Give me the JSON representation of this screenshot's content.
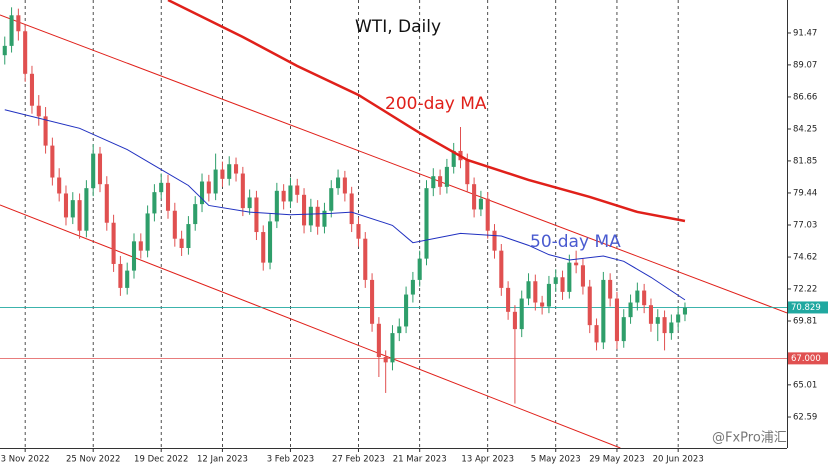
{
  "chart_data": {
    "type": "candlestick",
    "title": "WTI, Daily",
    "annotations": [
      {
        "text": "200-day MA",
        "color": "#e0201a"
      },
      {
        "text": "50-day MA",
        "color": "#4a5bd0"
      }
    ],
    "watermark": "@FxPro浦汇",
    "up_color": "#2e9e6a",
    "down_color": "#e05050",
    "xlim": [
      -0.7,
      115
    ],
    "ylim": [
      60.26,
      93.95
    ],
    "xticks": [
      {
        "value": 3,
        "label": "3 Nov 2022"
      },
      {
        "value": 13,
        "label": "25 Nov 2022"
      },
      {
        "value": 23,
        "label": "19 Dec 2022"
      },
      {
        "value": 32,
        "label": "12 Jan 2023"
      },
      {
        "value": 42,
        "label": "3 Feb 2023"
      },
      {
        "value": 52,
        "label": "27 Feb 2023"
      },
      {
        "value": 61,
        "label": "21 Mar 2023"
      },
      {
        "value": 71,
        "label": "13 Apr 2023"
      },
      {
        "value": 81,
        "label": "5 May 2023"
      },
      {
        "value": 90,
        "label": "29 May 2023"
      },
      {
        "value": 99,
        "label": "20 Jun 2023"
      }
    ],
    "yticks": [
      91.47,
      89.07,
      86.66,
      84.25,
      81.85,
      79.44,
      77.03,
      74.62,
      72.22,
      69.81,
      65.01,
      62.59
    ],
    "candles": [
      [
        89.8,
        91.2,
        89.1,
        90.5
      ],
      [
        90.5,
        93.4,
        90.0,
        92.8
      ],
      [
        92.8,
        93.3,
        90.9,
        91.6
      ],
      [
        91.6,
        92.1,
        87.8,
        88.4
      ],
      [
        88.4,
        89.0,
        85.4,
        86.0
      ],
      [
        86.0,
        86.8,
        84.5,
        85.2
      ],
      [
        85.2,
        85.9,
        82.4,
        83.0
      ],
      [
        83.0,
        83.6,
        80.0,
        80.6
      ],
      [
        80.6,
        81.3,
        78.8,
        79.4
      ],
      [
        79.4,
        80.0,
        77.0,
        77.6
      ],
      [
        77.6,
        79.5,
        77.1,
        78.9
      ],
      [
        78.9,
        79.4,
        76.0,
        76.6
      ],
      [
        76.6,
        80.4,
        76.1,
        79.8
      ],
      [
        79.8,
        83.1,
        79.2,
        82.4
      ],
      [
        82.4,
        82.9,
        79.5,
        80.1
      ],
      [
        80.1,
        80.7,
        76.6,
        77.2
      ],
      [
        77.2,
        77.8,
        73.5,
        74.1
      ],
      [
        74.1,
        74.7,
        71.7,
        72.3
      ],
      [
        72.3,
        74.2,
        71.8,
        73.6
      ],
      [
        73.6,
        76.4,
        73.0,
        75.8
      ],
      [
        75.8,
        76.4,
        74.5,
        75.1
      ],
      [
        75.1,
        78.5,
        74.6,
        77.9
      ],
      [
        77.9,
        80.1,
        77.3,
        79.5
      ],
      [
        79.5,
        80.9,
        79.0,
        80.2
      ],
      [
        80.2,
        80.8,
        77.5,
        78.1
      ],
      [
        78.1,
        78.7,
        75.4,
        76.0
      ],
      [
        76.0,
        76.6,
        74.7,
        75.3
      ],
      [
        75.3,
        77.7,
        74.8,
        77.1
      ],
      [
        77.1,
        79.2,
        76.6,
        78.6
      ],
      [
        78.6,
        80.9,
        78.0,
        80.3
      ],
      [
        80.3,
        80.8,
        78.8,
        79.4
      ],
      [
        79.4,
        82.4,
        78.9,
        81.2
      ],
      [
        81.2,
        81.8,
        79.9,
        80.5
      ],
      [
        80.5,
        82.2,
        80.0,
        81.6
      ],
      [
        81.6,
        82.1,
        80.3,
        80.9
      ],
      [
        80.9,
        81.4,
        77.7,
        78.3
      ],
      [
        78.3,
        79.7,
        77.8,
        79.1
      ],
      [
        79.1,
        79.6,
        75.9,
        76.5
      ],
      [
        76.5,
        77.0,
        73.6,
        74.2
      ],
      [
        74.2,
        77.9,
        73.7,
        77.3
      ],
      [
        77.3,
        80.2,
        76.8,
        79.6
      ],
      [
        79.6,
        80.1,
        78.2,
        78.8
      ],
      [
        78.8,
        80.6,
        78.3,
        80.0
      ],
      [
        80.0,
        80.5,
        78.7,
        79.3
      ],
      [
        79.3,
        79.8,
        76.4,
        77.0
      ],
      [
        77.0,
        79.0,
        76.5,
        78.4
      ],
      [
        78.4,
        78.9,
        76.3,
        76.9
      ],
      [
        76.9,
        78.7,
        76.4,
        78.1
      ],
      [
        78.1,
        80.4,
        77.6,
        79.8
      ],
      [
        79.8,
        81.2,
        79.3,
        80.6
      ],
      [
        80.6,
        81.1,
        78.8,
        79.4
      ],
      [
        79.4,
        79.9,
        76.5,
        77.1
      ],
      [
        77.1,
        77.6,
        75.4,
        76.0
      ],
      [
        76.0,
        76.5,
        72.3,
        72.9
      ],
      [
        72.9,
        73.4,
        69.0,
        69.6
      ],
      [
        69.6,
        70.1,
        65.6,
        67.1
      ],
      [
        67.1,
        67.6,
        64.4,
        66.7
      ],
      [
        66.7,
        69.5,
        66.1,
        68.9
      ],
      [
        68.9,
        70.0,
        68.3,
        69.4
      ],
      [
        69.4,
        72.4,
        68.9,
        71.8
      ],
      [
        71.8,
        73.5,
        71.2,
        72.9
      ],
      [
        72.9,
        75.1,
        72.4,
        74.5
      ],
      [
        74.5,
        80.4,
        74.0,
        79.8
      ],
      [
        79.8,
        81.3,
        79.2,
        80.7
      ],
      [
        80.7,
        81.2,
        79.3,
        79.9
      ],
      [
        79.9,
        82.0,
        79.4,
        81.4
      ],
      [
        81.4,
        83.2,
        80.9,
        82.6
      ],
      [
        82.6,
        84.4,
        81.3,
        81.9
      ],
      [
        81.9,
        82.4,
        79.5,
        80.1
      ],
      [
        80.1,
        80.6,
        77.6,
        78.2
      ],
      [
        78.2,
        79.6,
        77.7,
        79.0
      ],
      [
        79.0,
        79.5,
        76.0,
        76.6
      ],
      [
        76.6,
        77.1,
        74.5,
        75.1
      ],
      [
        75.1,
        75.6,
        71.7,
        72.3
      ],
      [
        72.3,
        72.8,
        69.9,
        70.5
      ],
      [
        70.5,
        71.0,
        63.6,
        69.2
      ],
      [
        69.2,
        72.1,
        68.6,
        71.5
      ],
      [
        71.5,
        73.4,
        71.0,
        72.8
      ],
      [
        72.8,
        73.3,
        70.6,
        71.2
      ],
      [
        71.2,
        71.7,
        70.3,
        70.9
      ],
      [
        70.9,
        73.2,
        70.4,
        72.6
      ],
      [
        72.6,
        73.7,
        72.0,
        73.1
      ],
      [
        73.1,
        73.6,
        71.4,
        72.0
      ],
      [
        72.0,
        74.8,
        71.5,
        74.2
      ],
      [
        74.2,
        75.1,
        73.4,
        74.0
      ],
      [
        74.0,
        74.5,
        71.8,
        72.4
      ],
      [
        72.4,
        72.9,
        68.9,
        69.5
      ],
      [
        69.5,
        70.0,
        67.6,
        68.2
      ],
      [
        68.2,
        73.5,
        67.7,
        72.9
      ],
      [
        72.9,
        73.4,
        70.9,
        71.5
      ],
      [
        71.5,
        72.0,
        67.7,
        68.3
      ],
      [
        68.3,
        70.7,
        67.8,
        70.1
      ],
      [
        70.1,
        71.8,
        69.6,
        71.2
      ],
      [
        71.2,
        72.7,
        70.6,
        72.1
      ],
      [
        72.1,
        72.6,
        70.4,
        71.0
      ],
      [
        71.0,
        71.5,
        69.0,
        69.6
      ],
      [
        69.6,
        70.7,
        68.3,
        70.1
      ],
      [
        70.1,
        70.6,
        67.6,
        68.9
      ],
      [
        68.9,
        70.3,
        68.4,
        69.7
      ],
      [
        69.7,
        70.9,
        69.1,
        70.3
      ],
      [
        70.3,
        71.2,
        69.8,
        70.8
      ]
    ],
    "series": [
      {
        "name": "200-day MA",
        "color": "#e0201a",
        "width": 2.5,
        "x": [
          24,
          35,
          43,
          52,
          61,
          68,
          77,
          86,
          93,
          100
        ],
        "values": [
          93.95,
          91.17,
          88.99,
          86.81,
          83.95,
          81.92,
          80.42,
          79.14,
          78.01,
          77.33
        ]
      },
      {
        "name": "50-day MA",
        "color": "#2030c0",
        "width": 1,
        "x": [
          0,
          11,
          18,
          22,
          27,
          30,
          36,
          42,
          48,
          51,
          57,
          60,
          64,
          67,
          73,
          77,
          80,
          83,
          88,
          91,
          95,
          100
        ],
        "values": [
          85.7,
          84.3,
          82.7,
          81.5,
          80.0,
          78.5,
          78.0,
          77.8,
          77.9,
          78.0,
          77.0,
          75.7,
          76.1,
          76.4,
          76.2,
          75.5,
          74.8,
          74.4,
          74.7,
          74.3,
          73.1,
          71.4
        ]
      }
    ],
    "trendlines": [
      {
        "color": "#e0201a",
        "x": [
          -0.7,
          115
        ],
        "values": [
          92.82,
          70.42
        ]
      },
      {
        "color": "#e0201a",
        "x": [
          -0.7,
          90.5
        ],
        "values": [
          78.54,
          60.26
        ]
      }
    ],
    "levels": [
      {
        "value": 70.829,
        "color": "#20a8a0"
      },
      {
        "value": 67,
        "label": "67.000",
        "color": "#e05050"
      }
    ]
  }
}
